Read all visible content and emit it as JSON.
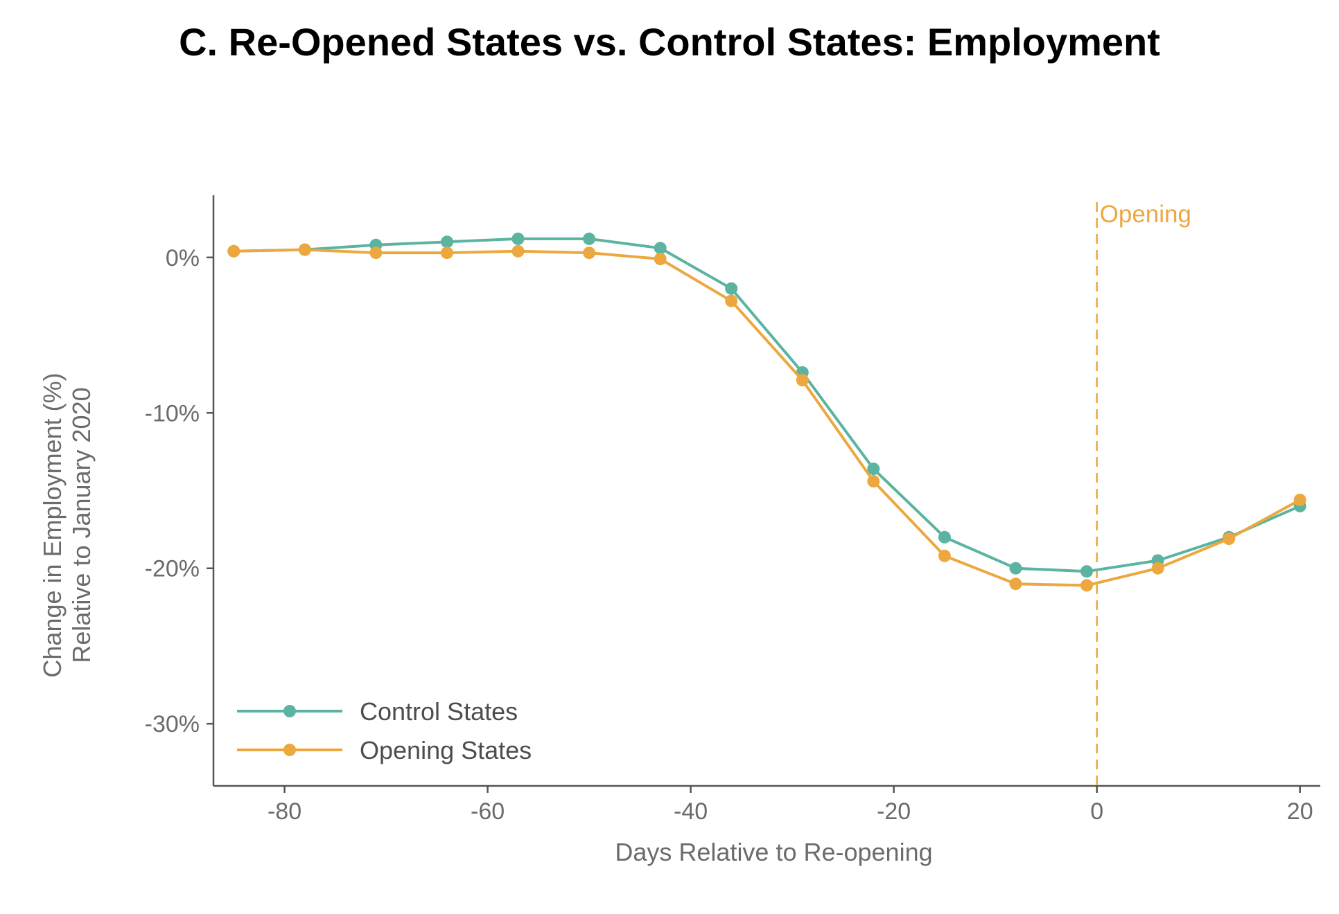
{
  "chart_data": {
    "type": "line",
    "title": "C. Re-Opened States vs. Control States: Employment",
    "xlabel": "Days Relative to Re-opening",
    "ylabel": [
      "Change in Employment (%)",
      "Relative to January 2020"
    ],
    "xlim": [
      -87,
      22
    ],
    "ylim": [
      -34,
      4
    ],
    "xticks": [
      -80,
      -60,
      -40,
      -20,
      0,
      20
    ],
    "xtick_labels": [
      "-80",
      "-60",
      "-40",
      "-20",
      "0",
      "20"
    ],
    "yticks": [
      0,
      -10,
      -20,
      -30
    ],
    "ytick_labels": [
      "0%",
      "-10%",
      "-20%",
      "-30%"
    ],
    "grid": false,
    "legend_position": "bottom-left",
    "x": [
      -85,
      -78,
      -71,
      -64,
      -57,
      -50,
      -43,
      -36,
      -29,
      -22,
      -15,
      -8,
      -1,
      6,
      13,
      20
    ],
    "series": [
      {
        "name": "Control States",
        "color": "#5bb3a1",
        "values": [
          0.4,
          0.5,
          0.8,
          1.0,
          1.2,
          1.2,
          0.6,
          -2.0,
          -7.4,
          -13.6,
          -18.0,
          -20.0,
          -20.2,
          -19.5,
          -18.0,
          -16.0
        ]
      },
      {
        "name": "Opening States",
        "color": "#eca83f",
        "values": [
          0.4,
          0.5,
          0.3,
          0.3,
          0.4,
          0.3,
          -0.1,
          -2.8,
          -7.9,
          -14.4,
          -19.2,
          -21.0,
          -21.1,
          -20.0,
          -18.1,
          -15.6
        ]
      }
    ],
    "annotations": [
      {
        "type": "vline",
        "x": 0,
        "label": "Opening",
        "color": "#eca83f",
        "style": "dashed"
      }
    ]
  }
}
